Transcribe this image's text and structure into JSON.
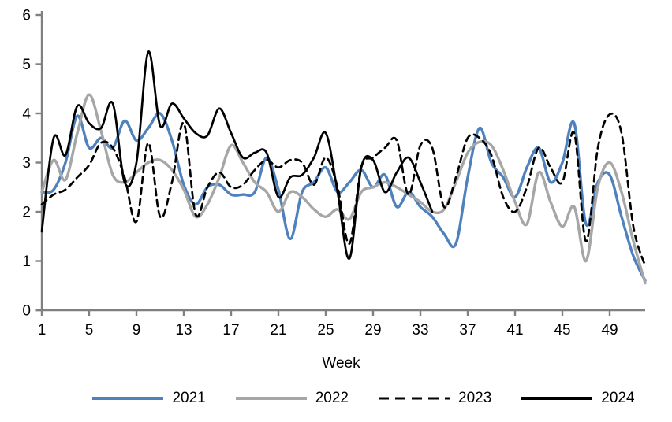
{
  "chart_data": {
    "type": "line",
    "title": "",
    "xlabel": "Week",
    "ylabel": "",
    "grid": false,
    "legend_position": "bottom",
    "ylim": [
      0,
      6
    ],
    "y_ticks": [
      0,
      1,
      2,
      3,
      4,
      5,
      6
    ],
    "x_ticks": [
      1,
      5,
      9,
      13,
      17,
      21,
      25,
      29,
      33,
      37,
      41,
      45,
      49
    ],
    "x_range": [
      1,
      52
    ],
    "axis_color": "#808080",
    "text_color": "#000000",
    "series": [
      {
        "name": "2021",
        "color": "#4F81BD",
        "style": "solid",
        "line_width": 3.4,
        "start_week": 1,
        "values": [
          2.4,
          2.45,
          3.0,
          3.95,
          3.3,
          3.5,
          3.3,
          3.85,
          3.45,
          3.7,
          4.0,
          3.45,
          2.55,
          2.15,
          2.5,
          2.55,
          2.35,
          2.35,
          2.4,
          3.1,
          2.45,
          1.45,
          2.4,
          2.6,
          2.9,
          2.4,
          2.6,
          2.85,
          2.5,
          2.75,
          2.1,
          2.4,
          2.1,
          1.9,
          1.55,
          1.35,
          2.7,
          3.7,
          3.0,
          2.7,
          2.3,
          2.9,
          3.3,
          2.6,
          3.0,
          3.8,
          1.75,
          2.6,
          2.75,
          1.9,
          1.1,
          0.6
        ]
      },
      {
        "name": "2022",
        "color": "#A6A6A6",
        "style": "solid",
        "line_width": 3.4,
        "start_week": 1,
        "values": [
          2.4,
          3.05,
          2.65,
          3.6,
          4.38,
          3.65,
          2.75,
          2.6,
          2.8,
          3.0,
          3.05,
          2.85,
          2.45,
          1.9,
          2.15,
          2.7,
          3.35,
          3.0,
          2.6,
          2.4,
          2.0,
          2.4,
          2.3,
          2.05,
          1.9,
          2.05,
          1.85,
          2.4,
          2.5,
          2.6,
          2.5,
          2.35,
          2.2,
          2.0,
          2.05,
          2.6,
          3.2,
          3.42,
          3.35,
          2.85,
          2.2,
          1.75,
          2.8,
          2.2,
          1.7,
          2.1,
          1.0,
          2.5,
          3.0,
          2.4,
          1.4,
          0.55
        ]
      },
      {
        "name": "2023",
        "color": "#000000",
        "style": "dashed",
        "line_width": 2.7,
        "start_week": 1,
        "values": [
          2.15,
          2.35,
          2.45,
          2.7,
          2.95,
          3.4,
          3.3,
          2.7,
          1.8,
          3.4,
          1.9,
          2.6,
          3.8,
          1.95,
          2.5,
          2.8,
          2.5,
          2.55,
          2.85,
          3.05,
          2.9,
          3.05,
          3.0,
          2.55,
          3.1,
          2.5,
          1.35,
          2.9,
          3.1,
          3.3,
          3.45,
          2.35,
          3.35,
          3.3,
          2.1,
          2.7,
          3.5,
          3.5,
          3.15,
          2.3,
          2.0,
          2.5,
          3.3,
          2.9,
          2.6,
          3.6,
          1.4,
          3.3,
          3.98,
          3.6,
          1.7,
          0.9
        ]
      },
      {
        "name": "2024",
        "color": "#000000",
        "style": "solid",
        "line_width": 2.7,
        "start_week": 1,
        "values": [
          1.6,
          3.5,
          3.15,
          4.15,
          3.8,
          3.7,
          4.2,
          2.6,
          3.0,
          5.25,
          3.75,
          4.2,
          3.9,
          3.6,
          3.55,
          4.1,
          3.6,
          3.1,
          3.2,
          3.2,
          2.3,
          2.7,
          2.75,
          3.1,
          3.6,
          2.4,
          1.05,
          2.9,
          3.05,
          2.4,
          2.8,
          3.1,
          2.6,
          2.0
        ]
      }
    ]
  }
}
